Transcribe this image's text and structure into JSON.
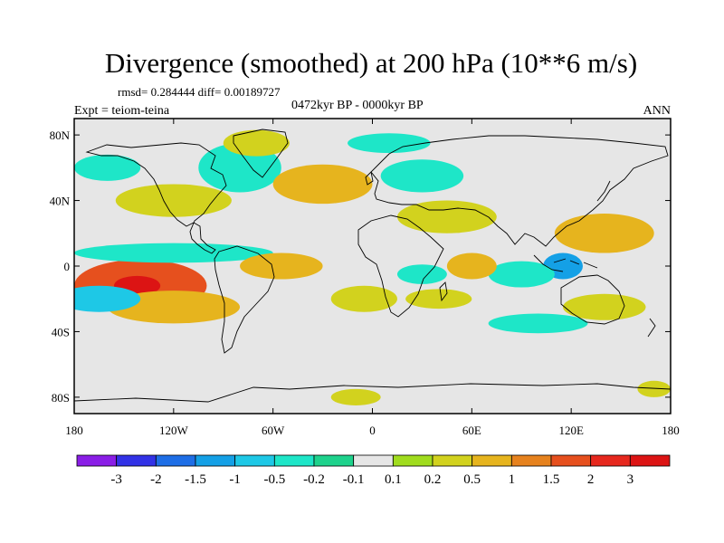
{
  "chart_data": {
    "type": "heatmap",
    "title": "Divergence (smoothed) at 200 hPa (10**6 m/s)",
    "stats": "rmsd= 0.284444 diff= 0.00189727",
    "period": "0472kyr BP - 0000kyr BP",
    "expt": "Expt = teiom-teina",
    "season": "ANN",
    "xlim": [
      -180,
      180
    ],
    "ylim": [
      -90,
      90
    ],
    "x_ticks": [
      {
        "value": -180,
        "label": "180"
      },
      {
        "value": -120,
        "label": "120W"
      },
      {
        "value": -60,
        "label": "60W"
      },
      {
        "value": 0,
        "label": "0"
      },
      {
        "value": 60,
        "label": "60E"
      },
      {
        "value": 120,
        "label": "120E"
      },
      {
        "value": 180,
        "label": "180"
      }
    ],
    "y_ticks": [
      {
        "value": 80,
        "label": "80N"
      },
      {
        "value": 40,
        "label": "40N"
      },
      {
        "value": 0,
        "label": "0"
      },
      {
        "value": -40,
        "label": "40S"
      },
      {
        "value": -80,
        "label": "80S"
      }
    ],
    "colorbar": {
      "levels": [
        "-3",
        "-2",
        "-1.5",
        "-1",
        "-0.5",
        "-0.2",
        "-0.1",
        "0.1",
        "0.2",
        "0.5",
        "1",
        "1.5",
        "2",
        "3"
      ],
      "colors": [
        "#8a1ee6",
        "#3232e6",
        "#1e6ee6",
        "#14a0e6",
        "#1ec8e6",
        "#1ee6c8",
        "#1ed28c",
        "#e6e6e6",
        "#a0dc1e",
        "#d2d21e",
        "#e6b41e",
        "#e6821e",
        "#e6501e",
        "#e6281e",
        "#dc1414"
      ]
    },
    "field_blobs": [
      {
        "lon": -140,
        "lat": -12,
        "rlon": 40,
        "rlat": 16,
        "value": 1.6
      },
      {
        "lon": -142,
        "lat": -12,
        "rlon": 14,
        "rlat": 6,
        "value": 3.2
      },
      {
        "lon": -120,
        "lat": -25,
        "rlon": 40,
        "rlat": 10,
        "value": 0.7
      },
      {
        "lon": -120,
        "lat": 8,
        "rlon": 60,
        "rlat": 6,
        "value": -0.45
      },
      {
        "lon": -165,
        "lat": -20,
        "rlon": 25,
        "rlat": 8,
        "value": -0.6
      },
      {
        "lon": -120,
        "lat": 40,
        "rlon": 35,
        "rlat": 10,
        "value": 0.3
      },
      {
        "lon": -160,
        "lat": 60,
        "rlon": 20,
        "rlat": 8,
        "value": -0.4
      },
      {
        "lon": -80,
        "lat": 60,
        "rlon": 25,
        "rlat": 15,
        "value": -0.4
      },
      {
        "lon": -70,
        "lat": 75,
        "rlon": 20,
        "rlat": 8,
        "value": 0.3
      },
      {
        "lon": -30,
        "lat": 50,
        "rlon": 30,
        "rlat": 12,
        "value": 0.5
      },
      {
        "lon": 10,
        "lat": 75,
        "rlon": 25,
        "rlat": 6,
        "value": -0.45
      },
      {
        "lon": 30,
        "lat": 55,
        "rlon": 25,
        "rlat": 10,
        "value": -0.35
      },
      {
        "lon": 45,
        "lat": 30,
        "rlon": 30,
        "rlat": 10,
        "value": 0.3
      },
      {
        "lon": 140,
        "lat": 20,
        "rlon": 30,
        "rlat": 12,
        "value": 0.6
      },
      {
        "lon": 115,
        "lat": 0,
        "rlon": 12,
        "rlat": 8,
        "value": -1.3
      },
      {
        "lon": 90,
        "lat": -5,
        "rlon": 20,
        "rlat": 8,
        "value": -0.5
      },
      {
        "lon": 60,
        "lat": 0,
        "rlon": 15,
        "rlat": 8,
        "value": 0.6
      },
      {
        "lon": -55,
        "lat": 0,
        "rlon": 25,
        "rlat": 8,
        "value": 0.6
      },
      {
        "lon": -5,
        "lat": -20,
        "rlon": 20,
        "rlat": 8,
        "value": 0.4
      },
      {
        "lon": 30,
        "lat": -5,
        "rlon": 15,
        "rlat": 6,
        "value": -0.4
      },
      {
        "lon": 40,
        "lat": -20,
        "rlon": 20,
        "rlat": 6,
        "value": 0.35
      },
      {
        "lon": 140,
        "lat": -25,
        "rlon": 25,
        "rlat": 8,
        "value": 0.35
      },
      {
        "lon": 100,
        "lat": -35,
        "rlon": 30,
        "rlat": 6,
        "value": -0.4
      },
      {
        "lon": -10,
        "lat": -80,
        "rlon": 15,
        "rlat": 5,
        "value": 0.3
      },
      {
        "lon": 170,
        "lat": -75,
        "rlon": 10,
        "rlat": 5,
        "value": 0.3
      }
    ]
  }
}
